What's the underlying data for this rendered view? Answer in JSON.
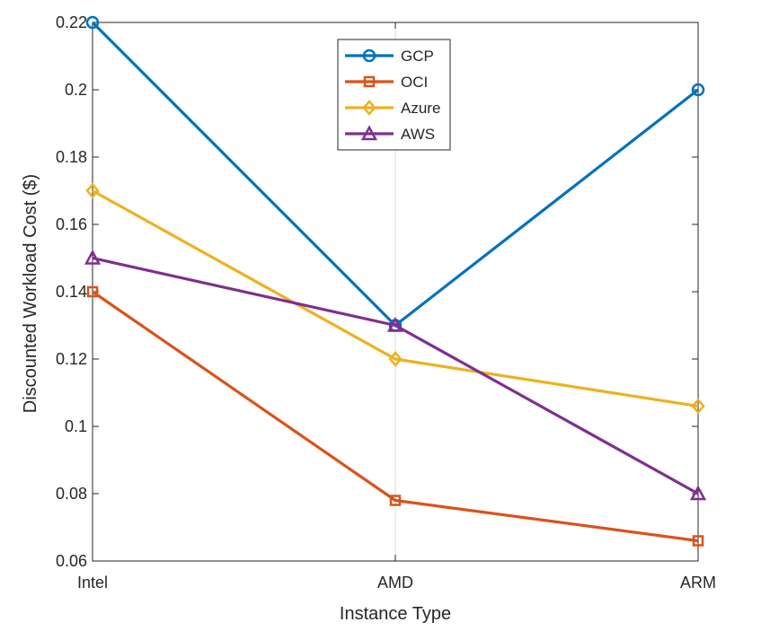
{
  "chart_data": {
    "type": "line",
    "title": "",
    "xlabel": "Instance Type",
    "ylabel": "Discounted Workload Cost ($)",
    "categories": [
      "Intel",
      "AMD",
      "ARM"
    ],
    "ylim": [
      0.06,
      0.22
    ],
    "yticks": [
      0.06,
      0.08,
      0.1,
      0.12,
      0.14,
      0.16,
      0.18,
      0.2,
      0.22
    ],
    "ytick_labels": [
      "0.06",
      "0.08",
      "0.1",
      "0.12",
      "0.14",
      "0.16",
      "0.18",
      "0.2",
      "0.22"
    ],
    "grid": "vertical gridlines at category positions",
    "legend_position": "top-center",
    "series": [
      {
        "name": "GCP",
        "values": [
          0.22,
          0.13,
          0.2
        ],
        "color": "#0072BD",
        "marker": "circle"
      },
      {
        "name": "OCI",
        "values": [
          0.14,
          0.078,
          0.066
        ],
        "color": "#D95319",
        "marker": "square"
      },
      {
        "name": "Azure",
        "values": [
          0.17,
          0.12,
          0.106
        ],
        "color": "#EDB120",
        "marker": "diamond"
      },
      {
        "name": "AWS",
        "values": [
          0.15,
          0.13,
          0.08
        ],
        "color": "#7E2F8E",
        "marker": "triangle"
      }
    ]
  }
}
